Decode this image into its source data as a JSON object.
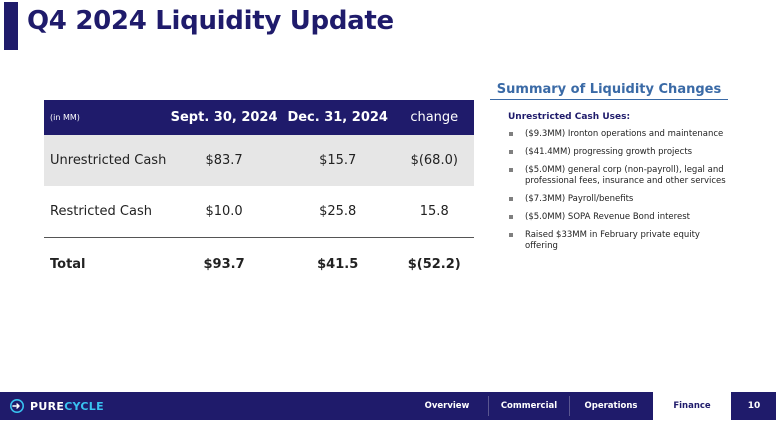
{
  "title": "Q4 2024 Liquidity Update",
  "table": {
    "unit": "(in MM)",
    "columns": [
      "Sept. 30, 2024",
      "Dec. 31, 2024",
      "change"
    ],
    "rows": [
      {
        "label": "Unrestricted Cash",
        "sept": "$83.7",
        "dec": "$15.7",
        "change": "$(68.0)"
      },
      {
        "label": "Restricted Cash",
        "sept": "$10.0",
        "dec": "$25.8",
        "change": "15.8"
      },
      {
        "label": "Total",
        "sept": "$93.7",
        "dec": "$41.5",
        "change": "$(52.2)"
      }
    ]
  },
  "summary": {
    "title": "Summary of Liquidity Changes",
    "heading": "Unrestricted Cash Uses:",
    "items": [
      "($9.3MM) Ironton operations and maintenance",
      "($41.4MM) progressing growth projects",
      "($5.0MM) general corp (non-payroll), legal and professional fees, insurance and other services",
      "($7.3MM) Payroll/benefits",
      "($5.0MM) SOPA Revenue Bond interest",
      "Raised $33MM in February private equity offering"
    ]
  },
  "footer": {
    "logo_pure": "PURE",
    "logo_cycle": "CYCLE",
    "nav": [
      "Overview",
      "Commercial",
      "Operations",
      "Finance"
    ],
    "page_number": "10"
  },
  "colors": {
    "brand_navy": "#1f1b6b",
    "accent_blue": "#3a6aa6",
    "logo_cyan": "#39c2f0"
  }
}
